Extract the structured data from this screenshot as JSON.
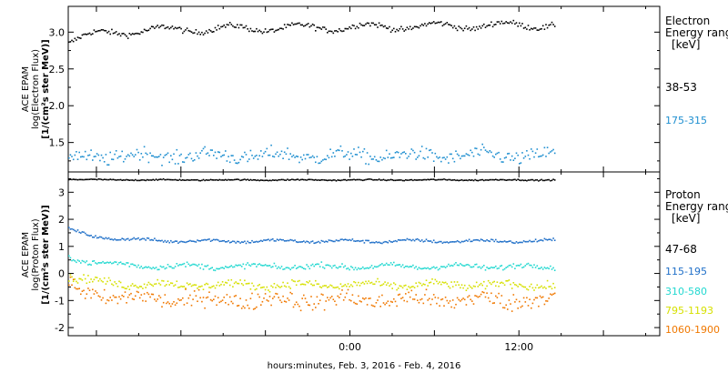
{
  "chart_data": [
    {
      "type": "scatter",
      "panel": "electron",
      "ylabel_lines": [
        "ACE EPAM",
        "log(Electron Flux)",
        "[1/(cm²s ster MeV)]"
      ],
      "y_ticks": [
        "3.0",
        "2.5",
        "2.0",
        "1.5"
      ],
      "ylim": [
        1.1,
        3.35
      ],
      "legend_title": [
        "Electron",
        "Energy range",
        "[keV]"
      ],
      "series": [
        {
          "name": "38-53",
          "color": "#000000",
          "start": 2.93,
          "level": 3.07,
          "amp": 0.045,
          "noise": 0.035,
          "trend": 0.08
        },
        {
          "name": "175-315",
          "color": "#1f8fd0",
          "start": 1.3,
          "level": 1.33,
          "amp": 0.04,
          "noise": 0.09,
          "trend": 0.0
        }
      ]
    },
    {
      "type": "scatter",
      "panel": "proton",
      "ylabel_lines": [
        "ACE EPAM",
        "log(Proton Flux)",
        "[1/(cm²s ster MeV)]"
      ],
      "y_ticks": [
        "3",
        "2",
        "1",
        "0",
        "-1",
        "-2"
      ],
      "ylim": [
        -2.3,
        3.75
      ],
      "legend_title": [
        "Proton",
        "Energy range",
        "[keV]"
      ],
      "series": [
        {
          "name": "47-68",
          "color": "#000000",
          "start": 3.5,
          "level": 3.48,
          "amp": 0.01,
          "noise": 0.02,
          "trend": 0.0
        },
        {
          "name": "115-195",
          "color": "#1f6fc8",
          "start": 1.65,
          "level": 1.22,
          "amp": 0.04,
          "noise": 0.05,
          "trend": 0.0
        },
        {
          "name": "310-580",
          "color": "#22d8d0",
          "start": 0.65,
          "level": 0.28,
          "amp": 0.06,
          "noise": 0.09,
          "trend": 0.0
        },
        {
          "name": "795-1193",
          "color": "#d6e000",
          "start": -0.1,
          "level": -0.4,
          "amp": 0.08,
          "noise": 0.14,
          "trend": 0.0
        },
        {
          "name": "1060-1900",
          "color": "#f07800",
          "start": -0.5,
          "level": -0.95,
          "amp": 0.12,
          "noise": 0.3,
          "trend": 0.0
        }
      ]
    }
  ],
  "x_axis": {
    "range_hours": [
      -20,
      22
    ],
    "data_end_hours": 14.5,
    "ticks": [
      {
        "hour": 0,
        "label": "0:00"
      },
      {
        "hour": 12,
        "label": "12:00"
      }
    ],
    "xlabel": "hours:minutes, Feb.  3, 2016 - Feb.  4, 2016"
  }
}
